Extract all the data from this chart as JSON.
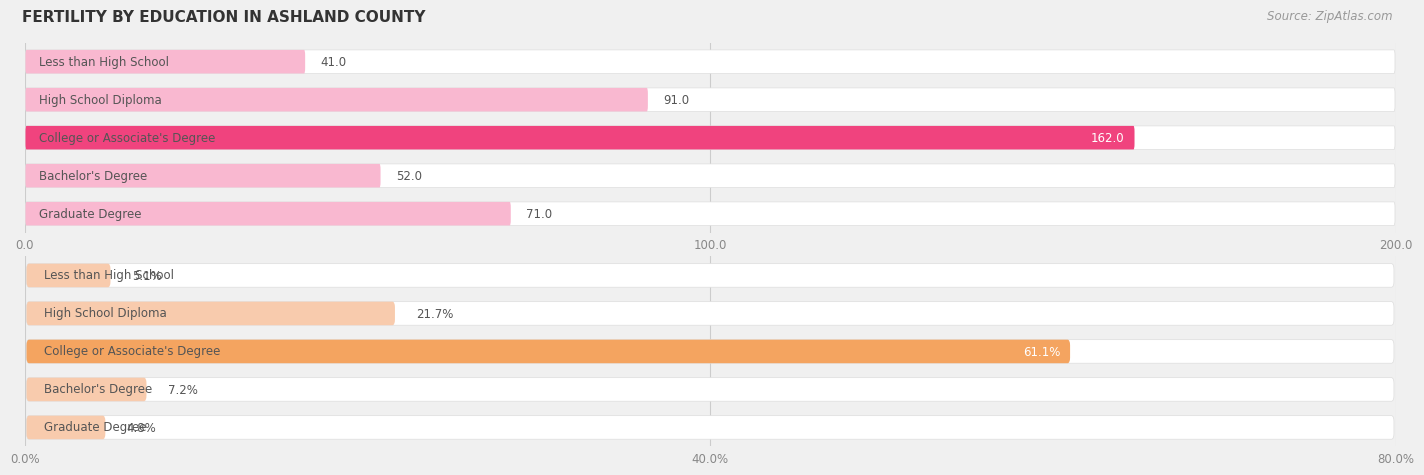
{
  "title": "FERTILITY BY EDUCATION IN ASHLAND COUNTY",
  "source": "Source: ZipAtlas.com",
  "top_chart": {
    "categories": [
      "Less than High School",
      "High School Diploma",
      "College or Associate's Degree",
      "Bachelor's Degree",
      "Graduate Degree"
    ],
    "values": [
      41.0,
      91.0,
      162.0,
      52.0,
      71.0
    ],
    "xlim": [
      0,
      200
    ],
    "xticks": [
      0.0,
      100.0,
      200.0
    ],
    "bar_color_normal": "#f9b8d0",
    "bar_color_highlight": "#f0437e",
    "highlight_index": 2
  },
  "bottom_chart": {
    "categories": [
      "Less than High School",
      "High School Diploma",
      "College or Associate's Degree",
      "Bachelor's Degree",
      "Graduate Degree"
    ],
    "values": [
      5.1,
      21.7,
      61.1,
      7.2,
      4.8
    ],
    "xlim": [
      0,
      80
    ],
    "xticks": [
      0.0,
      40.0,
      80.0
    ],
    "xticklabels": [
      "0.0%",
      "40.0%",
      "80.0%"
    ],
    "bar_color_normal": "#f8cbad",
    "bar_color_highlight": "#f4a460",
    "highlight_index": 2
  },
  "bg_color": "#f0f0f0",
  "bar_bg_color": "#ffffff",
  "label_color": "#555555",
  "value_color_normal": "#555555",
  "value_color_highlight": "#ffffff",
  "title_color": "#333333",
  "source_color": "#999999",
  "bar_height": 0.62,
  "label_fontsize": 8.5,
  "value_fontsize": 8.5,
  "title_fontsize": 11,
  "source_fontsize": 8.5
}
